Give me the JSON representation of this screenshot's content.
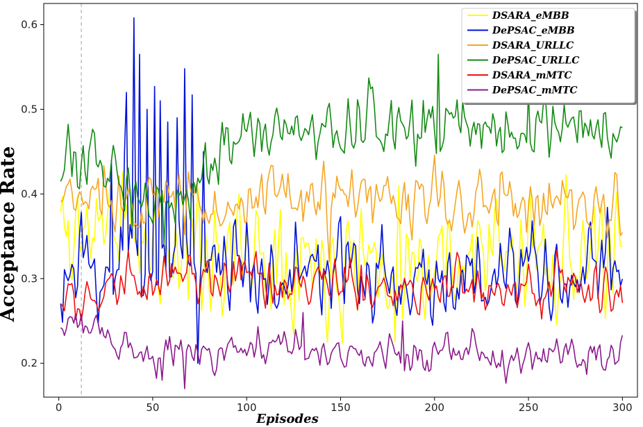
{
  "chart_data": {
    "type": "line",
    "xlabel": "Episodes",
    "ylabel": "Acceptance Rate",
    "xlim": [
      -8,
      308
    ],
    "ylim": [
      0.16,
      0.625
    ],
    "xticks": [
      0,
      50,
      100,
      150,
      200,
      250,
      300
    ],
    "yticks": [
      0.2,
      0.3,
      0.4,
      0.5,
      0.6
    ],
    "ytick_labels": [
      "0.2",
      "0.3",
      "0.4",
      "0.5",
      "0.6"
    ],
    "vline_x": 12,
    "legend_placement": "top-right",
    "grid": false,
    "episodes": {
      "start": 1,
      "end": 300
    },
    "series": [
      {
        "name": "DSARA_eMBB",
        "color": "#ffff00",
        "anchors": [
          [
            1,
            0.37
          ],
          [
            5,
            0.34
          ],
          [
            10,
            0.36
          ],
          [
            15,
            0.35
          ],
          [
            20,
            0.38
          ],
          [
            30,
            0.37
          ],
          [
            40,
            0.35
          ],
          [
            50,
            0.33
          ],
          [
            60,
            0.34
          ],
          [
            70,
            0.33
          ],
          [
            80,
            0.34
          ],
          [
            90,
            0.33
          ],
          [
            100,
            0.33
          ],
          [
            110,
            0.33
          ],
          [
            120,
            0.34
          ],
          [
            130,
            0.33
          ],
          [
            140,
            0.32
          ],
          [
            150,
            0.33
          ],
          [
            160,
            0.33
          ],
          [
            170,
            0.32
          ],
          [
            180,
            0.33
          ],
          [
            190,
            0.33
          ],
          [
            200,
            0.32
          ],
          [
            210,
            0.33
          ],
          [
            220,
            0.33
          ],
          [
            230,
            0.33
          ],
          [
            240,
            0.32
          ],
          [
            250,
            0.33
          ],
          [
            260,
            0.34
          ],
          [
            270,
            0.33
          ],
          [
            280,
            0.33
          ],
          [
            290,
            0.32
          ],
          [
            300,
            0.3
          ]
        ],
        "noise": 0.052,
        "seed": 11
      },
      {
        "name": "DePSAC_eMBB",
        "color": "#0010d8",
        "anchors": [
          [
            1,
            0.3
          ],
          [
            5,
            0.3
          ],
          [
            10,
            0.3
          ],
          [
            15,
            0.31
          ],
          [
            20,
            0.3
          ],
          [
            30,
            0.31
          ],
          [
            40,
            0.33
          ],
          [
            50,
            0.32
          ],
          [
            60,
            0.33
          ],
          [
            70,
            0.32
          ],
          [
            80,
            0.33
          ],
          [
            90,
            0.32
          ],
          [
            100,
            0.32
          ],
          [
            110,
            0.31
          ],
          [
            120,
            0.3
          ],
          [
            130,
            0.31
          ],
          [
            140,
            0.31
          ],
          [
            150,
            0.3
          ],
          [
            160,
            0.31
          ],
          [
            170,
            0.3
          ],
          [
            180,
            0.3
          ],
          [
            190,
            0.3
          ],
          [
            200,
            0.3
          ],
          [
            210,
            0.3
          ],
          [
            220,
            0.3
          ],
          [
            230,
            0.3
          ],
          [
            240,
            0.3
          ],
          [
            250,
            0.3
          ],
          [
            260,
            0.3
          ],
          [
            270,
            0.3
          ],
          [
            280,
            0.3
          ],
          [
            290,
            0.31
          ],
          [
            300,
            0.31
          ]
        ],
        "noise": 0.038,
        "seed": 23,
        "spikes": [
          [
            40,
            0.608
          ],
          [
            43,
            0.565
          ],
          [
            67,
            0.548
          ],
          [
            47,
            0.5
          ],
          [
            51,
            0.527
          ],
          [
            54,
            0.51
          ],
          [
            71,
            0.517
          ],
          [
            36,
            0.52
          ],
          [
            58,
            0.485
          ],
          [
            63,
            0.49
          ],
          [
            35,
            0.45
          ],
          [
            28,
            0.44
          ],
          [
            74,
            0.2
          ],
          [
            77,
            0.45
          ]
        ]
      },
      {
        "name": "DSARA_URLLC",
        "color": "#f5a623",
        "anchors": [
          [
            1,
            0.39
          ],
          [
            10,
            0.39
          ],
          [
            20,
            0.4
          ],
          [
            30,
            0.4
          ],
          [
            40,
            0.4
          ],
          [
            50,
            0.39
          ],
          [
            60,
            0.39
          ],
          [
            70,
            0.39
          ],
          [
            80,
            0.39
          ],
          [
            90,
            0.39
          ],
          [
            100,
            0.39
          ],
          [
            110,
            0.39
          ],
          [
            120,
            0.39
          ],
          [
            130,
            0.39
          ],
          [
            140,
            0.39
          ],
          [
            150,
            0.39
          ],
          [
            160,
            0.39
          ],
          [
            170,
            0.39
          ],
          [
            180,
            0.39
          ],
          [
            190,
            0.39
          ],
          [
            200,
            0.39
          ],
          [
            210,
            0.39
          ],
          [
            220,
            0.39
          ],
          [
            230,
            0.39
          ],
          [
            240,
            0.39
          ],
          [
            250,
            0.39
          ],
          [
            260,
            0.39
          ],
          [
            270,
            0.39
          ],
          [
            280,
            0.39
          ],
          [
            290,
            0.39
          ],
          [
            300,
            0.38
          ]
        ],
        "noise": 0.028,
        "seed": 37
      },
      {
        "name": "DePSAC_URLLC",
        "color": "#138a13",
        "anchors": [
          [
            1,
            0.43
          ],
          [
            10,
            0.43
          ],
          [
            20,
            0.44
          ],
          [
            30,
            0.43
          ],
          [
            40,
            0.42
          ],
          [
            50,
            0.39
          ],
          [
            60,
            0.39
          ],
          [
            70,
            0.41
          ],
          [
            80,
            0.44
          ],
          [
            90,
            0.46
          ],
          [
            100,
            0.47
          ],
          [
            110,
            0.47
          ],
          [
            120,
            0.47
          ],
          [
            130,
            0.48
          ],
          [
            140,
            0.47
          ],
          [
            150,
            0.48
          ],
          [
            160,
            0.48
          ],
          [
            170,
            0.48
          ],
          [
            180,
            0.48
          ],
          [
            190,
            0.48
          ],
          [
            200,
            0.48
          ],
          [
            210,
            0.48
          ],
          [
            220,
            0.48
          ],
          [
            230,
            0.48
          ],
          [
            240,
            0.48
          ],
          [
            250,
            0.47
          ],
          [
            260,
            0.48
          ],
          [
            270,
            0.48
          ],
          [
            280,
            0.47
          ],
          [
            290,
            0.47
          ],
          [
            300,
            0.47
          ]
        ],
        "noise": 0.025,
        "seed": 53,
        "spikes": [
          [
            165,
            0.537
          ],
          [
            202,
            0.565
          ],
          [
            250,
            0.52
          ],
          [
            56,
            0.34
          ],
          [
            39,
            0.36
          ]
        ]
      },
      {
        "name": "DSARA_mMTC",
        "color": "#ee1111",
        "anchors": [
          [
            1,
            0.27
          ],
          [
            10,
            0.28
          ],
          [
            20,
            0.28
          ],
          [
            30,
            0.29
          ],
          [
            40,
            0.29
          ],
          [
            50,
            0.29
          ],
          [
            60,
            0.3
          ],
          [
            70,
            0.3
          ],
          [
            80,
            0.3
          ],
          [
            90,
            0.3
          ],
          [
            100,
            0.3
          ],
          [
            110,
            0.29
          ],
          [
            120,
            0.29
          ],
          [
            130,
            0.3
          ],
          [
            140,
            0.29
          ],
          [
            150,
            0.29
          ],
          [
            160,
            0.29
          ],
          [
            170,
            0.29
          ],
          [
            180,
            0.29
          ],
          [
            190,
            0.29
          ],
          [
            200,
            0.29
          ],
          [
            210,
            0.29
          ],
          [
            220,
            0.29
          ],
          [
            230,
            0.29
          ],
          [
            240,
            0.29
          ],
          [
            250,
            0.29
          ],
          [
            260,
            0.29
          ],
          [
            270,
            0.3
          ],
          [
            280,
            0.3
          ],
          [
            290,
            0.29
          ],
          [
            300,
            0.27
          ]
        ],
        "noise": 0.02,
        "seed": 71
      },
      {
        "name": "DePSAC_mMTC",
        "color": "#8b1a8b",
        "anchors": [
          [
            1,
            0.24
          ],
          [
            10,
            0.25
          ],
          [
            20,
            0.24
          ],
          [
            30,
            0.22
          ],
          [
            40,
            0.22
          ],
          [
            50,
            0.21
          ],
          [
            60,
            0.21
          ],
          [
            70,
            0.21
          ],
          [
            80,
            0.21
          ],
          [
            90,
            0.21
          ],
          [
            100,
            0.22
          ],
          [
            110,
            0.21
          ],
          [
            120,
            0.22
          ],
          [
            130,
            0.22
          ],
          [
            140,
            0.22
          ],
          [
            150,
            0.22
          ],
          [
            160,
            0.22
          ],
          [
            170,
            0.21
          ],
          [
            180,
            0.21
          ],
          [
            190,
            0.21
          ],
          [
            200,
            0.21
          ],
          [
            210,
            0.21
          ],
          [
            220,
            0.22
          ],
          [
            230,
            0.21
          ],
          [
            240,
            0.21
          ],
          [
            250,
            0.21
          ],
          [
            260,
            0.21
          ],
          [
            270,
            0.21
          ],
          [
            280,
            0.21
          ],
          [
            290,
            0.21
          ],
          [
            300,
            0.21
          ]
        ],
        "noise": 0.015,
        "seed": 97,
        "spikes": [
          [
            67,
            0.17
          ],
          [
            55,
            0.18
          ],
          [
            130,
            0.26
          ],
          [
            183,
            0.25
          ]
        ]
      }
    ]
  }
}
